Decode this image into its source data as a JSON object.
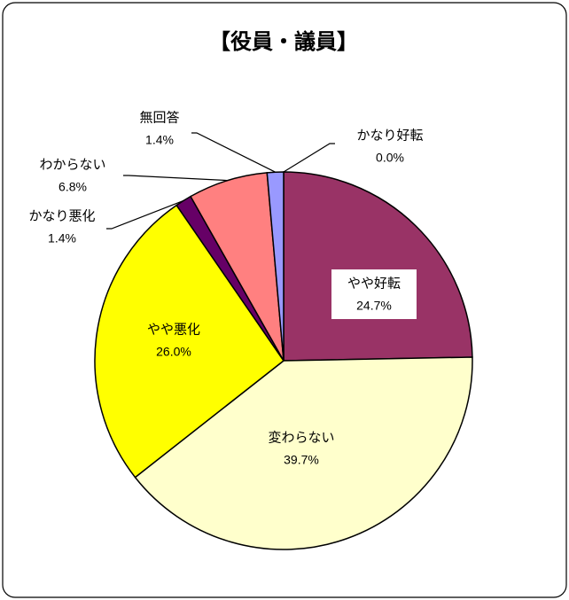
{
  "chart_data": {
    "type": "pie",
    "title": "【役員・議員】",
    "categories": [
      "かなり好転",
      "やや好転",
      "変わらない",
      "やや悪化",
      "かなり悪化",
      "わからない",
      "無回答"
    ],
    "values": [
      0.0,
      24.7,
      39.7,
      26.0,
      1.4,
      6.8,
      1.4
    ],
    "value_labels": [
      "0.0%",
      "24.7%",
      "39.7%",
      "26.0%",
      "1.4%",
      "6.8%",
      "1.4%"
    ],
    "colors": [
      "#333399",
      "#993366",
      "#FFFFCC",
      "#FFFF00",
      "#660066",
      "#FF8080",
      "#9999FF"
    ]
  }
}
